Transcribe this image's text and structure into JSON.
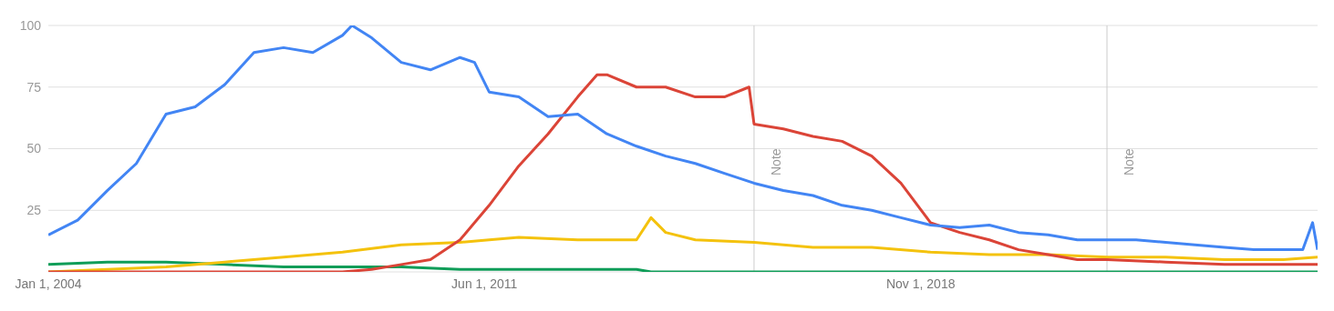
{
  "chart_data": {
    "type": "line",
    "xlim": [
      "2004-01",
      "2025-08"
    ],
    "xticks": [
      {
        "value": "2004-01-01",
        "label": "Jan 1, 2004"
      },
      {
        "value": "2011-06-01",
        "label": "Jun 1, 2011"
      },
      {
        "value": "2018-11-01",
        "label": "Nov 1, 2018"
      }
    ],
    "ylim": [
      0,
      100
    ],
    "yticks": [
      {
        "value": 0,
        "label": null
      },
      25,
      50,
      75,
      100
    ],
    "grid": "y",
    "marker": "none",
    "line_style": "solid",
    "ref_lines": [
      {
        "axis": "x",
        "value": "2016-01",
        "label": "Note",
        "color": "#cccccc"
      },
      {
        "axis": "x",
        "value": "2022-01",
        "label": "Note",
        "color": "#cccccc"
      }
    ],
    "series": [
      {
        "color": "#4285f4",
        "x": [
          "2004-01",
          "2004-07",
          "2005-01",
          "2005-07",
          "2006-01",
          "2006-07",
          "2007-01",
          "2007-07",
          "2008-01",
          "2008-07",
          "2009-01",
          "2009-03",
          "2009-07",
          "2010-01",
          "2010-07",
          "2011-01",
          "2011-04",
          "2011-07",
          "2012-01",
          "2012-07",
          "2013-01",
          "2013-07",
          "2014-01",
          "2014-07",
          "2015-01",
          "2015-07",
          "2016-01",
          "2016-07",
          "2017-01",
          "2017-07",
          "2018-01",
          "2018-07",
          "2019-01",
          "2019-07",
          "2020-01",
          "2020-07",
          "2021-01",
          "2021-07",
          "2022-01",
          "2022-07",
          "2023-01",
          "2023-07",
          "2024-01",
          "2024-07",
          "2025-01",
          "2025-05",
          "2025-07",
          "2025-08"
        ],
        "values": [
          15,
          21,
          33,
          44,
          64,
          67,
          76,
          89,
          91,
          89,
          96,
          100,
          95,
          85,
          82,
          87,
          85,
          73,
          71,
          63,
          64,
          56,
          51,
          47,
          44,
          40,
          36,
          33,
          31,
          27,
          25,
          22,
          19,
          18,
          19,
          16,
          15,
          13,
          13,
          13,
          12,
          11,
          10,
          9,
          9,
          9,
          20,
          9
        ]
      },
      {
        "color": "#db4437",
        "x": [
          "2004-01",
          "2009-01",
          "2009-07",
          "2010-01",
          "2010-07",
          "2011-01",
          "2011-07",
          "2012-01",
          "2012-07",
          "2013-01",
          "2013-05",
          "2013-07",
          "2014-01",
          "2014-07",
          "2015-01",
          "2015-07",
          "2015-12",
          "2016-01",
          "2016-07",
          "2017-01",
          "2017-07",
          "2018-01",
          "2018-07",
          "2019-01",
          "2019-07",
          "2020-01",
          "2020-07",
          "2021-01",
          "2021-07",
          "2022-01",
          "2023-01",
          "2024-01",
          "2025-01",
          "2025-08"
        ],
        "values": [
          0,
          0,
          1,
          3,
          5,
          13,
          27,
          43,
          56,
          71,
          80,
          80,
          75,
          75,
          71,
          71,
          75,
          60,
          58,
          55,
          53,
          47,
          36,
          20,
          16,
          13,
          9,
          7,
          5,
          5,
          4,
          3,
          3,
          3
        ]
      },
      {
        "color": "#f4c20d",
        "x": [
          "2004-01",
          "2006-01",
          "2007-01",
          "2008-01",
          "2009-01",
          "2010-01",
          "2011-01",
          "2011-07",
          "2012-01",
          "2013-01",
          "2014-01",
          "2014-04",
          "2014-07",
          "2015-01",
          "2016-01",
          "2017-01",
          "2018-01",
          "2019-01",
          "2020-01",
          "2021-01",
          "2022-01",
          "2023-01",
          "2024-01",
          "2025-01",
          "2025-08"
        ],
        "values": [
          0,
          2,
          4,
          6,
          8,
          11,
          12,
          13,
          14,
          13,
          13,
          22,
          16,
          13,
          12,
          10,
          10,
          8,
          7,
          7,
          6,
          6,
          5,
          5,
          6
        ]
      },
      {
        "color": "#0f9d58",
        "x": [
          "2004-01",
          "2005-01",
          "2006-01",
          "2007-01",
          "2008-01",
          "2009-01",
          "2010-01",
          "2011-01",
          "2012-01",
          "2014-01",
          "2014-04",
          "2025-08"
        ],
        "values": [
          3,
          4,
          4,
          3,
          2,
          2,
          2,
          1,
          1,
          1,
          0,
          0
        ]
      }
    ]
  }
}
